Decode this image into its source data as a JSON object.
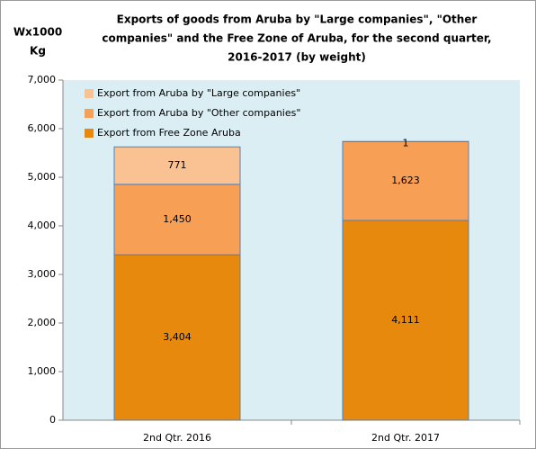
{
  "chart_data": {
    "type": "stacked_bar",
    "title": [
      "Exports of goods from Aruba by \"Large companies\", \"Other",
      "companies\" and the Free Zone of Aruba, for the second quarter,",
      "2016-2017 (by weight)"
    ],
    "y_label": [
      "Wx1000",
      "Kg"
    ],
    "categories": [
      "2nd Qtr. 2016",
      "2nd Qtr. 2017"
    ],
    "series": [
      {
        "name": "Export from Free Zone Aruba",
        "color": "#e6890c",
        "values": [
          3404,
          4111
        ],
        "value_labels": [
          "3,404",
          "4,111"
        ]
      },
      {
        "name": "Export from Aruba by \"Other companies\"",
        "color": "#f79f55",
        "values": [
          1450,
          1623
        ],
        "value_labels": [
          "1,450",
          "1,623"
        ]
      },
      {
        "name": "Export from Aruba by \"Large companies\"",
        "color": "#fac193",
        "values": [
          771,
          1
        ],
        "value_labels": [
          "771",
          "1"
        ]
      }
    ],
    "ylim": [
      0,
      7000
    ],
    "yticks": [
      0,
      {
        "value": 1000,
        "label": "1,000"
      },
      {
        "value": 2000,
        "label": "2,000"
      },
      {
        "value": 3000,
        "label": "3,000"
      },
      {
        "value": 4000,
        "label": "4,000"
      },
      {
        "value": 5000,
        "label": "5,000"
      },
      {
        "value": 6000,
        "label": "6,000"
      },
      {
        "value": 7000,
        "label": "7,000"
      }
    ],
    "legend": "upper left",
    "plot_background": "#dbeef4",
    "edge_color": "#4f81bd"
  }
}
